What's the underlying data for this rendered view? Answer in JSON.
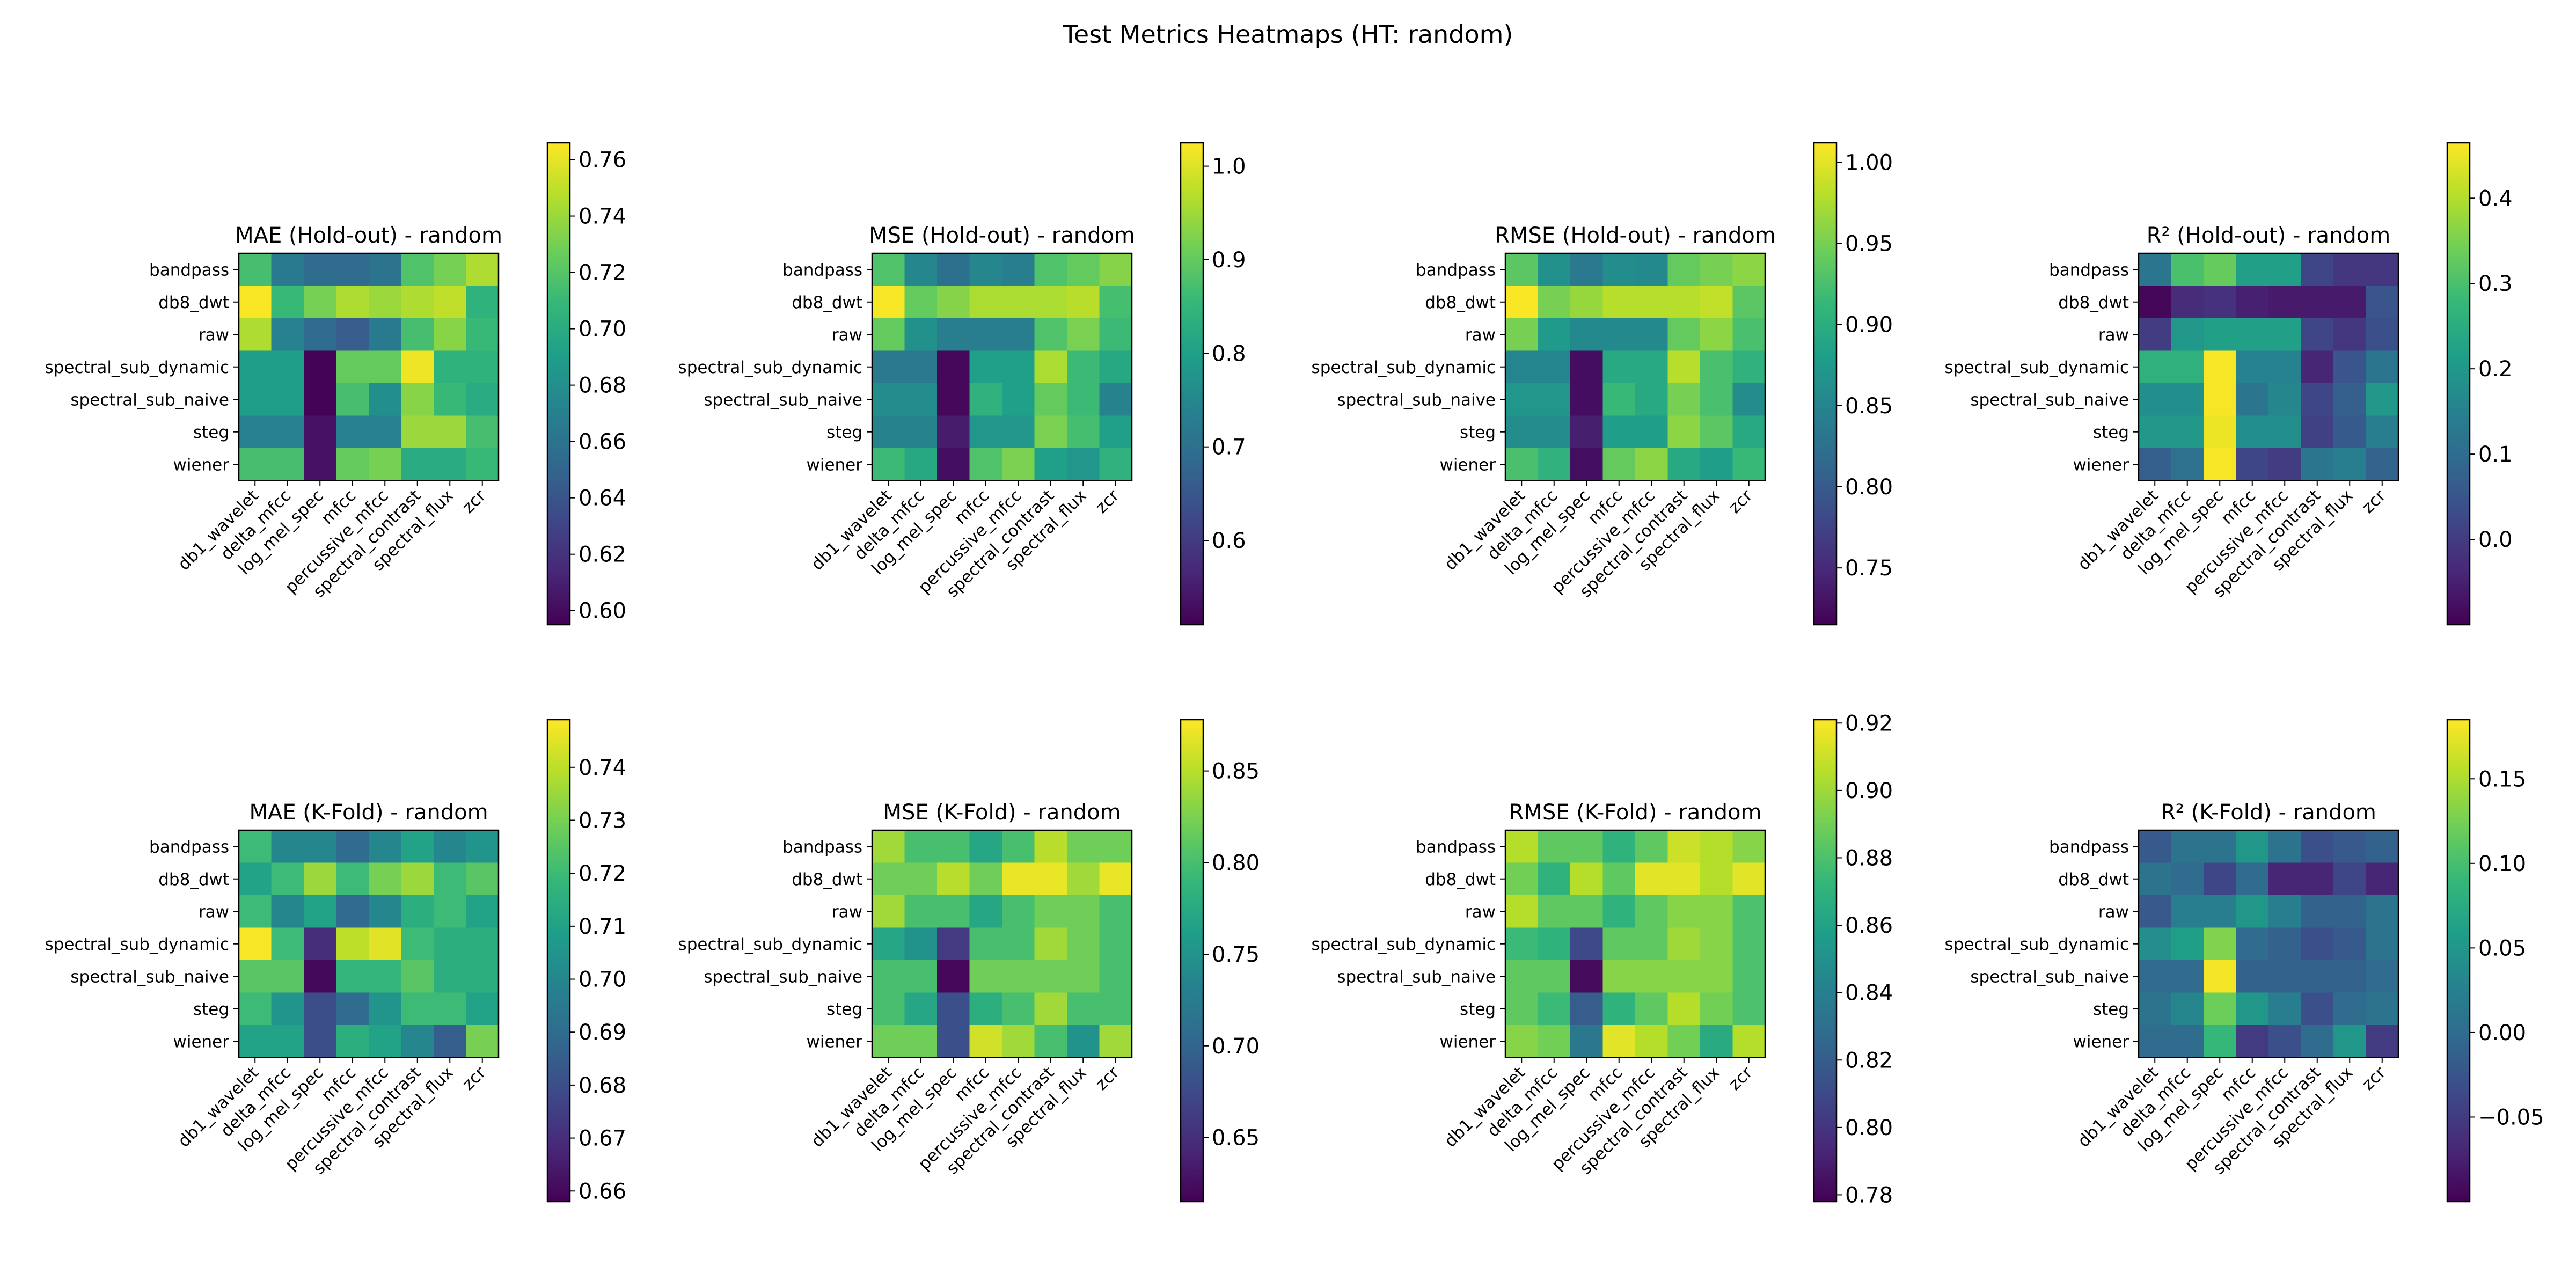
{
  "title": "Test Metrics Heatmaps (HT: random)",
  "chart_data": [
    {
      "type": "heatmap",
      "title": "MAE (Hold-out) - random",
      "rows": [
        "bandpass",
        "db8_dwt",
        "raw",
        "spectral_sub_dynamic",
        "spectral_sub_naive",
        "steg",
        "wiener"
      ],
      "cols": [
        "db1_wavelet",
        "delta_mfcc",
        "log_mel_spec",
        "mfcc",
        "percussive_mfcc",
        "spectral_contrast",
        "spectral_flux",
        "zcr"
      ],
      "values": [
        [
          0.715,
          0.665,
          0.655,
          0.655,
          0.66,
          0.718,
          0.73,
          0.745
        ],
        [
          0.765,
          0.71,
          0.73,
          0.745,
          0.74,
          0.745,
          0.75,
          0.705
        ],
        [
          0.745,
          0.67,
          0.655,
          0.645,
          0.665,
          0.715,
          0.735,
          0.71
        ],
        [
          0.69,
          0.69,
          0.596,
          0.725,
          0.725,
          0.762,
          0.705,
          0.705
        ],
        [
          0.69,
          0.69,
          0.596,
          0.715,
          0.68,
          0.735,
          0.71,
          0.7
        ],
        [
          0.67,
          0.67,
          0.603,
          0.67,
          0.67,
          0.74,
          0.74,
          0.715
        ],
        [
          0.715,
          0.715,
          0.603,
          0.725,
          0.73,
          0.7,
          0.7,
          0.71
        ]
      ],
      "colorbar": {
        "min": 0.595,
        "max": 0.766,
        "ticks": [
          0.6,
          0.62,
          0.64,
          0.66,
          0.68,
          0.7,
          0.72,
          0.74,
          0.76
        ],
        "tick_labels": [
          "0.60",
          "0.62",
          "0.64",
          "0.66",
          "0.68",
          "0.70",
          "0.72",
          "0.74",
          "0.76"
        ]
      },
      "colormap": "viridis"
    },
    {
      "type": "heatmap",
      "title": "MSE (Hold-out) - random",
      "rows": [
        "bandpass",
        "db8_dwt",
        "raw",
        "spectral_sub_dynamic",
        "spectral_sub_naive",
        "steg",
        "wiener"
      ],
      "cols": [
        "db1_wavelet",
        "delta_mfcc",
        "log_mel_spec",
        "mfcc",
        "percussive_mfcc",
        "spectral_contrast",
        "spectral_flux",
        "zcr"
      ],
      "values": [
        [
          0.88,
          0.75,
          0.7,
          0.75,
          0.73,
          0.88,
          0.9,
          0.93
        ],
        [
          1.02,
          0.9,
          0.93,
          0.96,
          0.96,
          0.96,
          0.97,
          0.87
        ],
        [
          0.9,
          0.77,
          0.73,
          0.73,
          0.73,
          0.88,
          0.92,
          0.86
        ],
        [
          0.72,
          0.72,
          0.52,
          0.8,
          0.8,
          0.96,
          0.86,
          0.82
        ],
        [
          0.76,
          0.76,
          0.52,
          0.84,
          0.8,
          0.9,
          0.86,
          0.74
        ],
        [
          0.74,
          0.74,
          0.55,
          0.78,
          0.78,
          0.92,
          0.87,
          0.8
        ],
        [
          0.86,
          0.82,
          0.53,
          0.88,
          0.92,
          0.8,
          0.78,
          0.84
        ]
      ],
      "colorbar": {
        "min": 0.51,
        "max": 1.025,
        "ticks": [
          0.6,
          0.7,
          0.8,
          0.9,
          1.0
        ],
        "tick_labels": [
          "0.6",
          "0.7",
          "0.8",
          "0.9",
          "1.0"
        ]
      },
      "colormap": "viridis"
    },
    {
      "type": "heatmap",
      "title": "RMSE (Hold-out) - random",
      "rows": [
        "bandpass",
        "db8_dwt",
        "raw",
        "spectral_sub_dynamic",
        "spectral_sub_naive",
        "steg",
        "wiener"
      ],
      "cols": [
        "db1_wavelet",
        "delta_mfcc",
        "log_mel_spec",
        "mfcc",
        "percussive_mfcc",
        "spectral_contrast",
        "spectral_flux",
        "zcr"
      ],
      "values": [
        [
          0.935,
          0.865,
          0.835,
          0.86,
          0.855,
          0.94,
          0.95,
          0.96
        ],
        [
          1.01,
          0.95,
          0.965,
          0.98,
          0.98,
          0.98,
          0.985,
          0.935
        ],
        [
          0.95,
          0.875,
          0.855,
          0.855,
          0.855,
          0.94,
          0.96,
          0.925
        ],
        [
          0.85,
          0.85,
          0.725,
          0.895,
          0.895,
          0.98,
          0.925,
          0.905
        ],
        [
          0.87,
          0.87,
          0.725,
          0.915,
          0.895,
          0.95,
          0.925,
          0.86
        ],
        [
          0.86,
          0.86,
          0.74,
          0.88,
          0.88,
          0.96,
          0.935,
          0.895
        ],
        [
          0.925,
          0.905,
          0.727,
          0.94,
          0.96,
          0.895,
          0.88,
          0.915
        ]
      ],
      "colorbar": {
        "min": 0.715,
        "max": 1.012,
        "ticks": [
          0.75,
          0.8,
          0.85,
          0.9,
          0.95,
          1.0
        ],
        "tick_labels": [
          "0.75",
          "0.80",
          "0.85",
          "0.90",
          "0.95",
          "1.00"
        ]
      },
      "colormap": "viridis"
    },
    {
      "type": "heatmap",
      "title": "R² (Hold-out) - random",
      "rows": [
        "bandpass",
        "db8_dwt",
        "raw",
        "spectral_sub_dynamic",
        "spectral_sub_naive",
        "steg",
        "wiener"
      ],
      "cols": [
        "db1_wavelet",
        "delta_mfcc",
        "log_mel_spec",
        "mfcc",
        "percussive_mfcc",
        "spectral_contrast",
        "spectral_flux",
        "zcr"
      ],
      "values": [
        [
          0.12,
          0.3,
          0.33,
          0.22,
          0.22,
          0.02,
          -0.01,
          -0.01
        ],
        [
          -0.09,
          -0.03,
          -0.02,
          -0.05,
          -0.06,
          -0.06,
          -0.06,
          0.05
        ],
        [
          0.0,
          0.2,
          0.22,
          0.22,
          0.22,
          0.02,
          -0.01,
          0.04
        ],
        [
          0.26,
          0.26,
          0.46,
          0.15,
          0.15,
          -0.04,
          0.05,
          0.12
        ],
        [
          0.18,
          0.18,
          0.46,
          0.12,
          0.16,
          0.02,
          0.07,
          0.2
        ],
        [
          0.2,
          0.2,
          0.45,
          0.18,
          0.18,
          0.01,
          0.06,
          0.14
        ],
        [
          0.07,
          0.11,
          0.46,
          0.02,
          0.0,
          0.12,
          0.14,
          0.08
        ]
      ],
      "colorbar": {
        "min": -0.1,
        "max": 0.465,
        "ticks": [
          0.0,
          0.1,
          0.2,
          0.3,
          0.4
        ],
        "tick_labels": [
          "0.0",
          "0.1",
          "0.2",
          "0.3",
          "0.4"
        ]
      },
      "colormap": "viridis"
    },
    {
      "type": "heatmap",
      "title": "MAE (K-Fold) - random",
      "rows": [
        "bandpass",
        "db8_dwt",
        "raw",
        "spectral_sub_dynamic",
        "spectral_sub_naive",
        "steg",
        "wiener"
      ],
      "cols": [
        "db1_wavelet",
        "delta_mfcc",
        "log_mel_spec",
        "mfcc",
        "percussive_mfcc",
        "spectral_contrast",
        "spectral_flux",
        "zcr"
      ],
      "values": [
        [
          0.72,
          0.7,
          0.7,
          0.69,
          0.7,
          0.71,
          0.7,
          0.705
        ],
        [
          0.71,
          0.72,
          0.735,
          0.72,
          0.73,
          0.735,
          0.72,
          0.725
        ],
        [
          0.72,
          0.7,
          0.71,
          0.69,
          0.7,
          0.715,
          0.72,
          0.71
        ],
        [
          0.748,
          0.72,
          0.67,
          0.74,
          0.745,
          0.72,
          0.715,
          0.715
        ],
        [
          0.725,
          0.725,
          0.66,
          0.718,
          0.718,
          0.725,
          0.715,
          0.715
        ],
        [
          0.72,
          0.705,
          0.68,
          0.69,
          0.705,
          0.72,
          0.72,
          0.71
        ],
        [
          0.71,
          0.71,
          0.68,
          0.715,
          0.71,
          0.7,
          0.685,
          0.73
        ]
      ],
      "colorbar": {
        "min": 0.658,
        "max": 0.749,
        "ticks": [
          0.66,
          0.67,
          0.68,
          0.69,
          0.7,
          0.71,
          0.72,
          0.73,
          0.74
        ],
        "tick_labels": [
          "0.66",
          "0.67",
          "0.68",
          "0.69",
          "0.70",
          "0.71",
          "0.72",
          "0.73",
          "0.74"
        ]
      },
      "colormap": "viridis"
    },
    {
      "type": "heatmap",
      "title": "MSE (K-Fold) - random",
      "rows": [
        "bandpass",
        "db8_dwt",
        "raw",
        "spectral_sub_dynamic",
        "spectral_sub_naive",
        "steg",
        "wiener"
      ],
      "cols": [
        "db1_wavelet",
        "delta_mfcc",
        "log_mel_spec",
        "mfcc",
        "percussive_mfcc",
        "spectral_contrast",
        "spectral_flux",
        "zcr"
      ],
      "values": [
        [
          0.84,
          0.8,
          0.8,
          0.77,
          0.8,
          0.85,
          0.82,
          0.82
        ],
        [
          0.82,
          0.82,
          0.85,
          0.82,
          0.87,
          0.87,
          0.84,
          0.87
        ],
        [
          0.84,
          0.8,
          0.8,
          0.77,
          0.8,
          0.82,
          0.82,
          0.8
        ],
        [
          0.77,
          0.75,
          0.66,
          0.8,
          0.8,
          0.84,
          0.82,
          0.8
        ],
        [
          0.8,
          0.8,
          0.62,
          0.82,
          0.82,
          0.82,
          0.82,
          0.8
        ],
        [
          0.8,
          0.77,
          0.68,
          0.78,
          0.8,
          0.84,
          0.8,
          0.8
        ],
        [
          0.82,
          0.82,
          0.68,
          0.86,
          0.84,
          0.8,
          0.75,
          0.84
        ]
      ],
      "colorbar": {
        "min": 0.615,
        "max": 0.878,
        "ticks": [
          0.65,
          0.7,
          0.75,
          0.8,
          0.85
        ],
        "tick_labels": [
          "0.65",
          "0.70",
          "0.75",
          "0.80",
          "0.85"
        ]
      },
      "colormap": "viridis"
    },
    {
      "type": "heatmap",
      "title": "RMSE (K-Fold) - random",
      "rows": [
        "bandpass",
        "db8_dwt",
        "raw",
        "spectral_sub_dynamic",
        "spectral_sub_naive",
        "steg",
        "wiener"
      ],
      "cols": [
        "db1_wavelet",
        "delta_mfcc",
        "log_mel_spec",
        "mfcc",
        "percussive_mfcc",
        "spectral_contrast",
        "spectral_flux",
        "zcr"
      ],
      "values": [
        [
          0.905,
          0.885,
          0.885,
          0.87,
          0.885,
          0.91,
          0.905,
          0.895
        ],
        [
          0.89,
          0.87,
          0.905,
          0.885,
          0.915,
          0.915,
          0.905,
          0.915
        ],
        [
          0.905,
          0.885,
          0.885,
          0.87,
          0.885,
          0.895,
          0.895,
          0.88
        ],
        [
          0.875,
          0.87,
          0.81,
          0.885,
          0.885,
          0.9,
          0.895,
          0.88
        ],
        [
          0.885,
          0.885,
          0.782,
          0.895,
          0.895,
          0.895,
          0.895,
          0.88
        ],
        [
          0.885,
          0.875,
          0.82,
          0.87,
          0.885,
          0.905,
          0.89,
          0.88
        ],
        [
          0.895,
          0.89,
          0.835,
          0.915,
          0.905,
          0.89,
          0.865,
          0.905
        ]
      ],
      "colorbar": {
        "min": 0.778,
        "max": 0.921,
        "ticks": [
          0.78,
          0.8,
          0.82,
          0.84,
          0.86,
          0.88,
          0.9,
          0.92
        ],
        "tick_labels": [
          "0.78",
          "0.80",
          "0.82",
          "0.84",
          "0.86",
          "0.88",
          "0.90",
          "0.92"
        ]
      },
      "colormap": "viridis"
    },
    {
      "type": "heatmap",
      "title": "R² (K-Fold) - random",
      "rows": [
        "bandpass",
        "db8_dwt",
        "raw",
        "spectral_sub_dynamic",
        "spectral_sub_naive",
        "steg",
        "wiener"
      ],
      "cols": [
        "db1_wavelet",
        "delta_mfcc",
        "log_mel_spec",
        "mfcc",
        "percussive_mfcc",
        "spectral_contrast",
        "spectral_flux",
        "zcr"
      ],
      "values": [
        [
          -0.02,
          0.01,
          0.01,
          0.05,
          0.01,
          -0.03,
          -0.02,
          -0.01
        ],
        [
          0.01,
          0.0,
          -0.04,
          0.0,
          -0.07,
          -0.07,
          -0.04,
          -0.07
        ],
        [
          -0.02,
          0.02,
          0.02,
          0.05,
          0.02,
          -0.01,
          -0.01,
          0.01
        ],
        [
          0.04,
          0.06,
          0.13,
          0.0,
          -0.01,
          -0.03,
          -0.02,
          0.01
        ],
        [
          0.0,
          0.0,
          0.18,
          -0.01,
          -0.01,
          -0.01,
          -0.01,
          0.0
        ],
        [
          0.01,
          0.03,
          0.12,
          0.05,
          0.02,
          -0.03,
          0.0,
          0.01
        ],
        [
          0.0,
          0.0,
          0.09,
          -0.05,
          -0.03,
          0.0,
          0.05,
          -0.05
        ]
      ],
      "colorbar": {
        "min": -0.1,
        "max": 0.185,
        "ticks": [
          -0.05,
          0.0,
          0.05,
          0.1,
          0.15
        ],
        "tick_labels": [
          "−0.05",
          "0.00",
          "0.05",
          "0.10",
          "0.15"
        ]
      },
      "colormap": "viridis"
    }
  ]
}
